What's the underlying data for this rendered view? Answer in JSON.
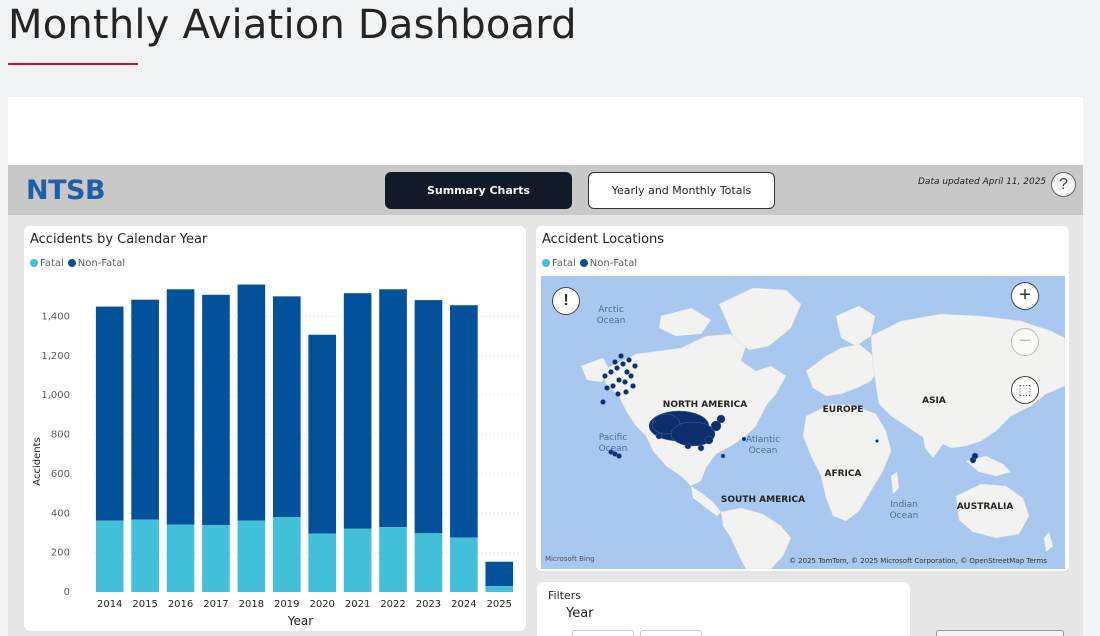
{
  "page": {
    "title": "Monthly Aviation Dashboard"
  },
  "header": {
    "logo": "NTSB",
    "tabs": [
      {
        "label": "Summary Charts",
        "active": true
      },
      {
        "label": "Yearly and Monthly Totals",
        "active": false
      }
    ],
    "updated": "Data updated April 11, 2025",
    "help": "?"
  },
  "colors": {
    "fatal": "#42c0d9",
    "nonfatal": "#02529b",
    "accent": "#c8102e"
  },
  "chart_card": {
    "title": "Accidents by Calendar Year",
    "legend": [
      {
        "label": "Fatal",
        "color": "#42c0d9"
      },
      {
        "label": "Non-Fatal",
        "color": "#02529b"
      }
    ]
  },
  "chart_data": {
    "type": "bar",
    "stacked": true,
    "categories": [
      "2014",
      "2015",
      "2016",
      "2017",
      "2018",
      "2019",
      "2020",
      "2021",
      "2022",
      "2023",
      "2024",
      "2025"
    ],
    "series": [
      {
        "name": "Fatal",
        "values": [
          362,
          368,
          342,
          340,
          362,
          380,
          297,
          321,
          330,
          298,
          276,
          30
        ]
      },
      {
        "name": "Non-Fatal",
        "values": [
          1088,
          1117,
          1196,
          1170,
          1200,
          1122,
          1010,
          1197,
          1208,
          1185,
          1181,
          124
        ]
      }
    ],
    "xlabel": "Year",
    "ylabel": "Accidents",
    "ylim": [
      0,
      1580
    ],
    "yticks": [
      0,
      200,
      400,
      600,
      800,
      1000,
      1200,
      1400
    ],
    "ytick_labels": [
      "0",
      "200",
      "400",
      "600",
      "800",
      "1,000",
      "1,200",
      "1,400"
    ],
    "grid": true
  },
  "map_card": {
    "title": "Accident Locations",
    "legend": [
      {
        "label": "Fatal",
        "color": "#42c0d9"
      },
      {
        "label": "Non-Fatal",
        "color": "#02529b"
      }
    ],
    "labels": {
      "arctic": [
        "Arctic",
        "Ocean"
      ],
      "pacific": [
        "Pacific",
        "Ocean"
      ],
      "atlantic": [
        "Atlantic",
        "Ocean"
      ],
      "indian": [
        "Indian",
        "Ocean"
      ],
      "north_america": "NORTH AMERICA",
      "south_america": "SOUTH AMERICA",
      "europe": "EUROPE",
      "asia": "ASIA",
      "africa": "AFRICA",
      "australia": "AUSTRALIA"
    },
    "credit": "© 2025 TomTom, © 2025 Microsoft Corporation, © OpenStreetMap  Terms",
    "provider": "Microsoft Bing",
    "buttons": {
      "info": "!",
      "zoom_in": "+",
      "zoom_out": "−",
      "select": "⬚"
    }
  },
  "filters": {
    "title": "Filters",
    "year_label": "Year"
  }
}
